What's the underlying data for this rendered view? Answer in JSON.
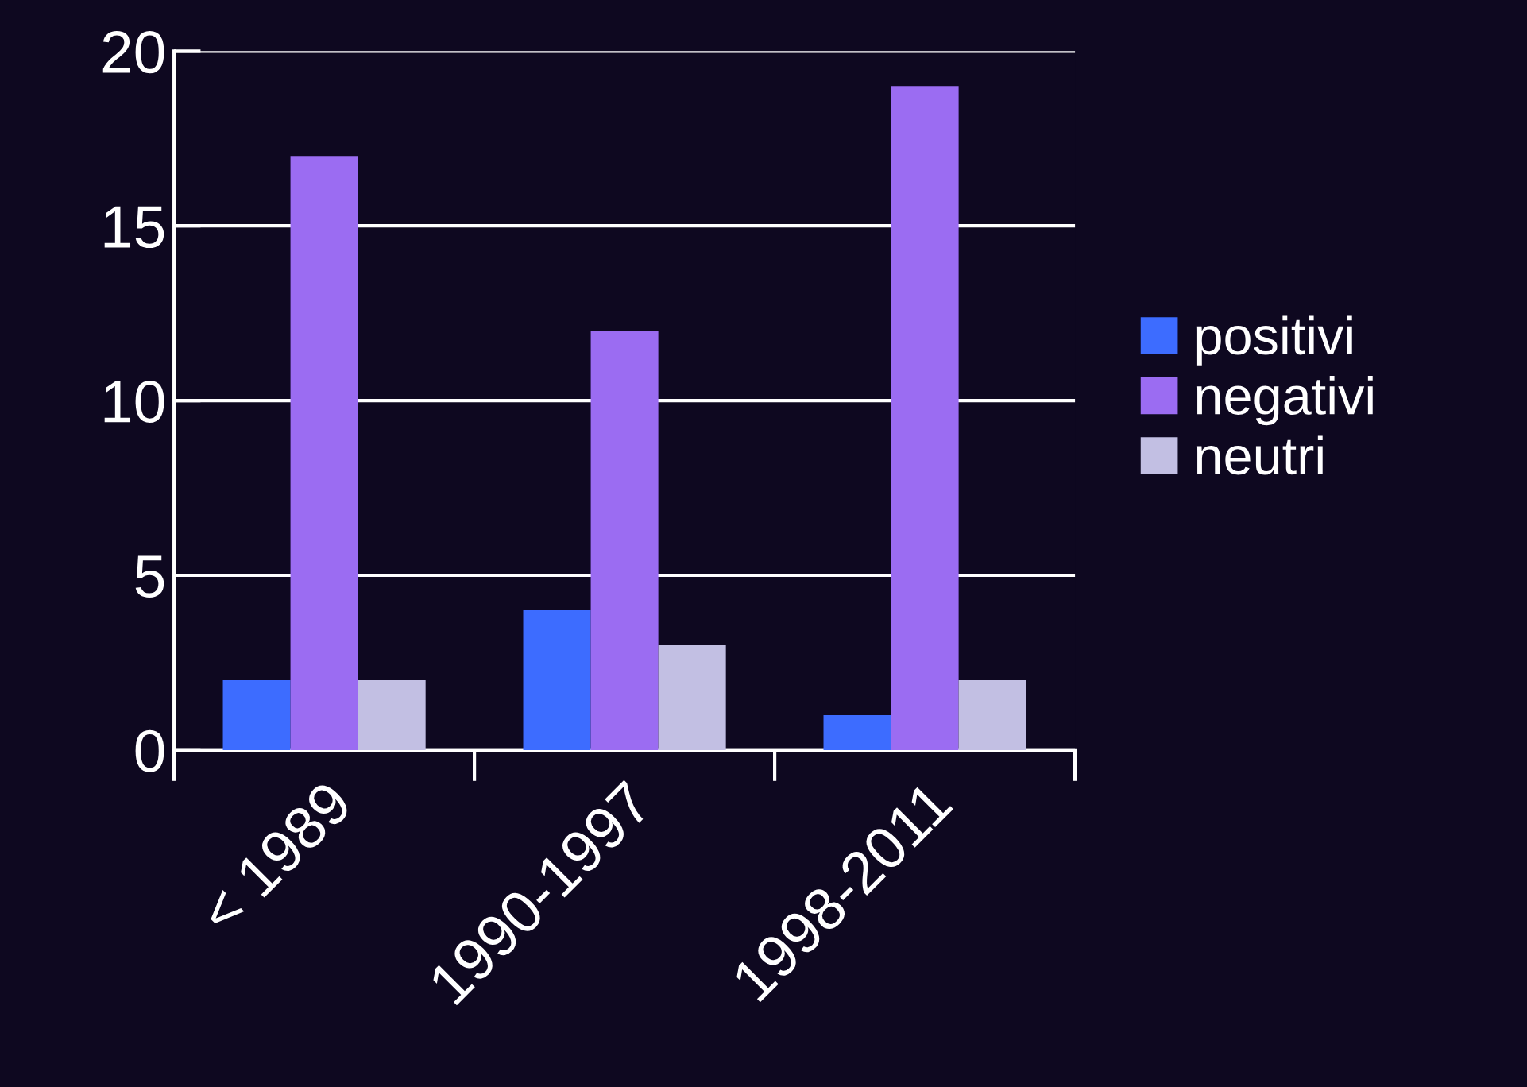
{
  "chart_data": {
    "type": "bar",
    "categories": [
      "< 1989",
      "1990-1997",
      "1998-2011"
    ],
    "series": [
      {
        "name": "positivi",
        "color": "#3d6cff",
        "values": [
          2,
          4,
          1
        ]
      },
      {
        "name": "negativi",
        "color": "#9b6cf2",
        "values": [
          17,
          12,
          19
        ]
      },
      {
        "name": "neutri",
        "color": "#c2bfe3",
        "values": [
          2,
          3,
          2
        ]
      }
    ],
    "ylim": [
      0,
      20
    ],
    "yticks": [
      0,
      5,
      10,
      15,
      20
    ],
    "grid": "y",
    "legend": "right"
  }
}
